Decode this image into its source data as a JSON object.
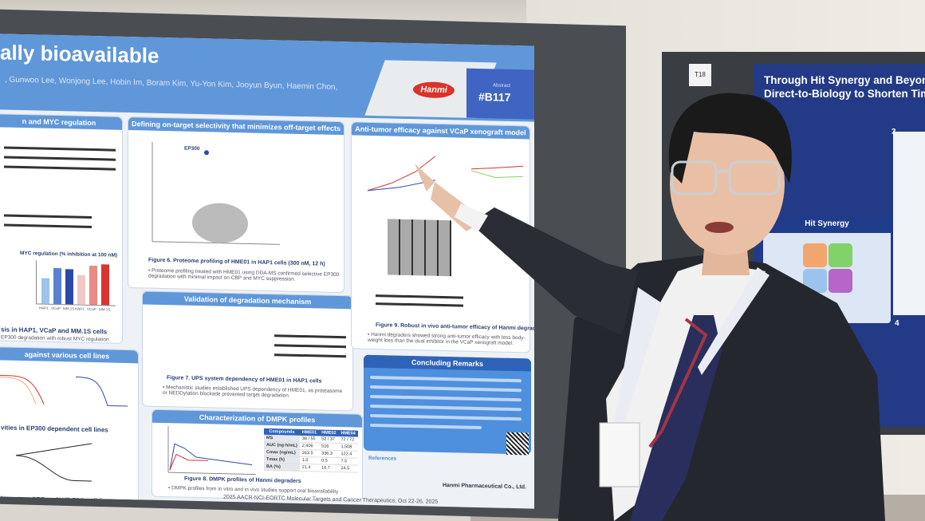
{
  "poster": {
    "title": "ally bioavailable",
    "authors": ", Gunwoo Lee, Wonjong Lee, Hobin Im, Boram Kim, Yu-Yon Kim, Jooyun Byun, Haemin Chon,",
    "logo": "Hanmi",
    "abstract_label": "Abstract",
    "abstract_number": "#B117",
    "sections": {
      "myc_regulation": "n and MYC regulation",
      "selectivity": "Defining on-target selectivity that minimizes off-target effects",
      "antitumor": "Anti-tumor efficacy against VCaP xenograft model",
      "degradation": "Validation of degradation mechanism",
      "cell_lines": "against various cell lines",
      "dmpk": "Characterization of DMPK profiles",
      "concluding": "Concluding Remarks"
    },
    "myc_chart_title": "MYC regulation (% inhibition at 100 nM)",
    "myc_bars": [
      {
        "label": "HAP1",
        "value": 65,
        "color": "#9cc3ec"
      },
      {
        "label": "VCaP",
        "value": 90,
        "color": "#5b7fd4"
      },
      {
        "label": "MM.1S",
        "value": 88,
        "color": "#2c4aa8"
      },
      {
        "label": "HAP1",
        "value": 75,
        "color": "#f0c9c6"
      },
      {
        "label": "VCaP",
        "value": 98,
        "color": "#e98a85"
      },
      {
        "label": "MM.1S",
        "value": 102,
        "color": "#d9352e"
      }
    ],
    "captions": {
      "left_analysis": "sis in HAP1, VCaP and MM.1S cells",
      "left_analysis_text": "EP300 degradation with robust MYC regulation.",
      "activities": "vities in EP300 dependent cell lines",
      "mutant": "in mutant-CBP and WT-CBP cell lines",
      "fig6": "Figure 6. Proteome profiling of HME01 in HAP1 cells (300 nM, 12 h)",
      "fig6_text": "• Proteome profiling treated with HME01 using DDA-MS confirmed selective EP300 degradation with minimal impact on CBP and MYC suppression.",
      "fig7": "Figure 7. UPS system dependency of HME01 in HAP1 cells",
      "fig7_text": "• Mechanistic studies established UPS dependency of HME01, as proteasome or NEDDylation blockade prevented target degradation.",
      "fig8": "Figure 8. DMPK profiles of Hanmi degraders",
      "fig8_text": "• DMPK profiles from in vitro and in vivo studies support oral bioavailability",
      "fig9": "Figure 9. Robust in vivo anti-tumor efficacy of Hanmi degraders",
      "fig9_text": "• Hanmi degraders showed strong anti-tumor efficacy with less body-weight loss than the dual inhibitor in the VCaP xenograft model."
    },
    "dmpk_table": {
      "headers": [
        "Compounds",
        "HME01",
        "HME02",
        "HME04"
      ],
      "rows": [
        [
          "MS",
          "38 / 55",
          "52 / 37",
          "72 / 72"
        ],
        [
          "AUC (ng·h/mL)",
          "2,406",
          "516",
          "1,508"
        ],
        [
          "Cmax (ng/mL)",
          "263.5",
          "336.3",
          "122.4"
        ],
        [
          "Tmax (h)",
          "1.0",
          "0.5",
          "7.5"
        ],
        [
          "BA (%)",
          "21.4",
          "16.7",
          "24.5"
        ]
      ]
    },
    "volcano_label": "EP300",
    "references_title": "References",
    "company": "Hanmi Pharmaceutical Co., Ltd.",
    "footer": "2025 AACR-NCI-EORTC Molecular Targets and Cancer Therapeutics, Oct 22-26, 2025"
  },
  "right_poster": {
    "title_line1": "Through Hit Synergy and Beyond! Int",
    "title_line2": "Direct-to-Biology to Shorten Time to",
    "section": "Hit Synergy",
    "board_number": "T18",
    "panel_number_3": "3",
    "panel_number_4": "4"
  }
}
